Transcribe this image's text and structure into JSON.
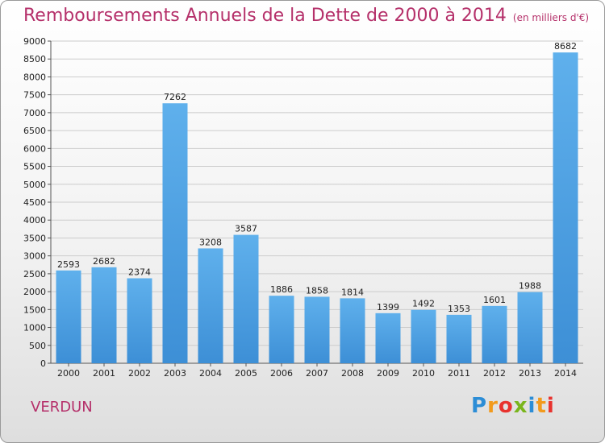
{
  "chart_data": {
    "type": "bar",
    "title": "Remboursements Annuels de la Dette de 2000 à 2014",
    "unit_note": "(en milliers d'€)",
    "categories": [
      "2000",
      "2001",
      "2002",
      "2003",
      "2004",
      "2005",
      "2006",
      "2007",
      "2008",
      "2009",
      "2010",
      "2011",
      "2012",
      "2013",
      "2014"
    ],
    "values": [
      2593,
      2682,
      2374,
      7262,
      3208,
      3587,
      1886,
      1858,
      1814,
      1399,
      1492,
      1353,
      1601,
      1988,
      8682
    ],
    "ylim": [
      0,
      9000
    ],
    "y_ticks": [
      0,
      500,
      1000,
      1500,
      2000,
      2500,
      3000,
      3500,
      4000,
      4500,
      5000,
      5500,
      6000,
      6500,
      7000,
      7500,
      8000,
      8500,
      9000
    ],
    "grid": true,
    "bar_color": "#3d8fd6",
    "bar_color_light": "#5fb0ec",
    "grid_color": "#cccccc"
  },
  "commune": "VERDUN",
  "brand": {
    "letters": [
      "P",
      "r",
      "o",
      "x",
      "i",
      "t",
      "i"
    ],
    "colors": [
      "#2c8dd6",
      "#f29a1c",
      "#e8322e",
      "#7ab51d",
      "#2c8dd6",
      "#f29a1c",
      "#e8322e"
    ]
  },
  "accent_color": "#b5306a"
}
